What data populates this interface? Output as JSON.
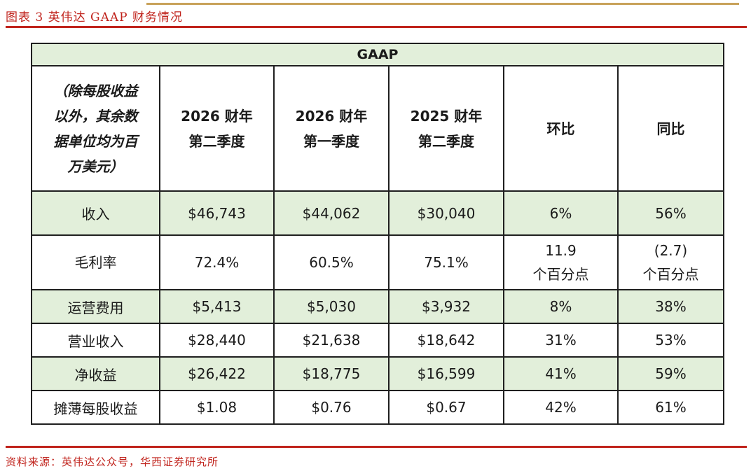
{
  "caption": "图表 3 英伟达 GAAP 财务情况",
  "table": {
    "title": "GAAP",
    "note_lines": [
      "（除每股收益",
      "以外，其余数",
      "据单位均为百",
      "万美元）"
    ],
    "columns": [
      {
        "line1": "2026 财年",
        "line2": "第二季度"
      },
      {
        "line1": "2026 财年",
        "line2": "第一季度"
      },
      {
        "line1": "2025 财年",
        "line2": "第二季度"
      },
      {
        "line1": "环比",
        "line2": ""
      },
      {
        "line1": "同比",
        "line2": ""
      }
    ],
    "rows": [
      {
        "label": "收入",
        "values": [
          "$46,743",
          "$44,062",
          "$30,040",
          "6%",
          "56%"
        ]
      },
      {
        "label": "毛利率",
        "values": [
          "72.4%",
          "60.5%",
          "75.1%",
          "11.9",
          "(2.7)"
        ],
        "suffix": "个百分点"
      },
      {
        "label": "运营费用",
        "values": [
          "$5,413",
          "$5,030",
          "$3,932",
          "8%",
          "38%"
        ]
      },
      {
        "label": "营业收入",
        "values": [
          "$28,440",
          "$21,638",
          "$18,642",
          "31%",
          "53%"
        ]
      },
      {
        "label": "净收益",
        "values": [
          "$26,422",
          "$18,775",
          "$16,599",
          "41%",
          "59%"
        ]
      },
      {
        "label": "摊薄每股收益",
        "values": [
          "$1.08",
          "$0.76",
          "$0.67",
          "42%",
          "61%"
        ]
      }
    ]
  },
  "source": "资料来源：英伟达公众号，华西证券研究所",
  "colors": {
    "accent_red": "#c0231c",
    "gold_rule": "#c8a25a",
    "row_shade": "#e2efda"
  }
}
